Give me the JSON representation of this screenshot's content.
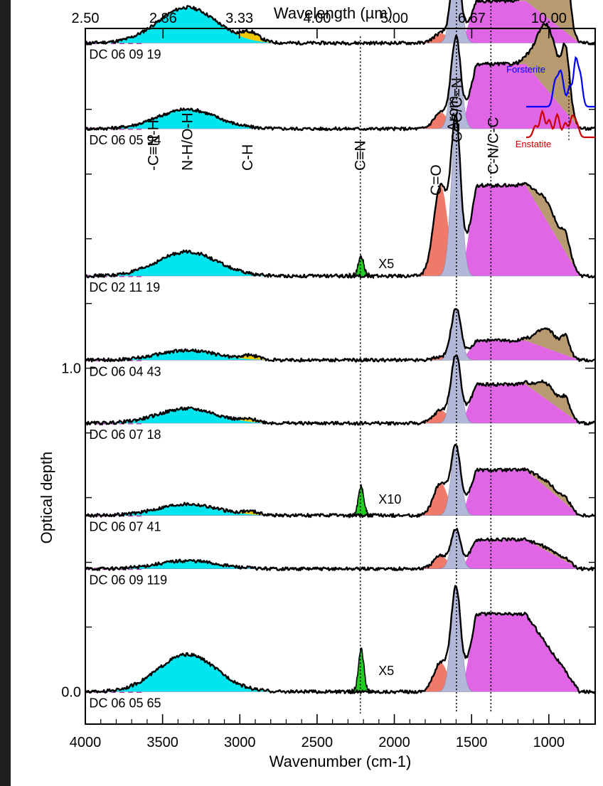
{
  "chart_data": {
    "type": "line",
    "title": "",
    "xlabel": "Wavenumber (cm-1)",
    "x2label": "Wavelength (µm)",
    "ylabel": "Optical depth",
    "xlim": [
      4000,
      700
    ],
    "ylim": [
      -0.1,
      2.05
    ],
    "x_ticks": [
      4000,
      3500,
      3000,
      2500,
      2000,
      1500,
      1000
    ],
    "x2_ticks": [
      {
        "label": "2.50",
        "wavenumber": 4000
      },
      {
        "label": "2.86",
        "wavenumber": 3497
      },
      {
        "label": "3.33",
        "wavenumber": 3003
      },
      {
        "label": "4.00",
        "wavenumber": 2500
      },
      {
        "label": "5.00",
        "wavenumber": 2000
      },
      {
        "label": "6.67",
        "wavenumber": 1499
      },
      {
        "label": "10.00",
        "wavenumber": 1000
      }
    ],
    "y_ticks": [
      {
        "value": 0.0,
        "label": "0.0"
      },
      {
        "value": 1.0,
        "label": "1.0"
      }
    ],
    "band_labels": [
      {
        "text": "-C≡N-H",
        "wavenumber": 3560
      },
      {
        "text": "N-H/O-H",
        "wavenumber": 3340
      },
      {
        "text": "C-H",
        "wavenumber": 2950
      },
      {
        "text": "C≡N",
        "wavenumber": 2220
      },
      {
        "text": "C=O",
        "wavenumber": 1730
      },
      {
        "text": "Arom.",
        "wavenumber": 1620
      },
      {
        "text": "C=C/C=N",
        "wavenumber": 1595
      },
      {
        "text": "C-N/C-C",
        "wavenumber": 1360
      }
    ],
    "dotted_lines": [
      2220,
      1598,
      1375
    ],
    "series": [
      {
        "name": "DC 06 09 19",
        "baseline": 2.005,
        "cn_peak": 0,
        "cn_label": "",
        "nh_peak": 0.11,
        "ch_peak": 0.025,
        "co_peak": 0.03,
        "arom_peak": 0.245,
        "cn_cc_peak": 0.13,
        "silicate_peak": 0.23,
        "label_offset": -0.06
      },
      {
        "name": "DC 06 05 94",
        "baseline": 1.74,
        "cn_peak": 0,
        "cn_label": "",
        "nh_peak": 0.06,
        "ch_peak": 0,
        "co_peak": 0.05,
        "arom_peak": 0.28,
        "cn_cc_peak": 0.2,
        "silicate_peak": 0.2,
        "label_offset": -0.06
      },
      {
        "name": "DC 02 11 19",
        "baseline": 1.285,
        "cn_peak": 0.06,
        "cn_label": "X5",
        "nh_peak": 0.075,
        "ch_peak": 0,
        "co_peak": 0.28,
        "arom_peak": 0.47,
        "cn_cc_peak": 0.28,
        "silicate_peak": 0.06,
        "label_offset": -0.06
      },
      {
        "name": "DC 06 04 43",
        "baseline": 1.025,
        "cn_peak": 0,
        "cn_label": "",
        "nh_peak": 0.03,
        "ch_peak": 0.012,
        "co_peak": 0.01,
        "arom_peak": 0.16,
        "cn_cc_peak": 0.06,
        "silicate_peak": 0.06,
        "label_offset": -0.055
      },
      {
        "name": "DC 06 07 18",
        "baseline": 0.83,
        "cn_peak": 0,
        "cn_label": "",
        "nh_peak": 0.045,
        "ch_peak": 0.008,
        "co_peak": 0.04,
        "arom_peak": 0.21,
        "cn_cc_peak": 0.12,
        "silicate_peak": 0.05,
        "label_offset": -0.055
      },
      {
        "name": "DC 06 07 41",
        "baseline": 0.545,
        "cn_peak": 0.09,
        "cn_label": "X10",
        "nh_peak": 0.035,
        "ch_peak": 0.01,
        "co_peak": 0.1,
        "arom_peak": 0.21,
        "cn_cc_peak": 0.14,
        "silicate_peak": 0.02,
        "label_offset": -0.055
      },
      {
        "name": "DC 06 09 119",
        "baseline": 0.38,
        "cn_peak": 0,
        "cn_label": "",
        "nh_peak": 0.025,
        "ch_peak": 0,
        "co_peak": 0.04,
        "arom_peak": 0.12,
        "cn_cc_peak": 0.09,
        "silicate_peak": 0.01,
        "label_offset": -0.055
      },
      {
        "name": "DC 06 05 65",
        "baseline": 0.0,
        "cn_peak": 0.13,
        "cn_label": "X5",
        "nh_peak": 0.115,
        "ch_peak": 0,
        "co_peak": 0.09,
        "arom_peak": 0.32,
        "cn_cc_peak": 0.24,
        "silicate_peak": 0.0,
        "label_offset": -0.045
      }
    ],
    "inset": {
      "series": [
        {
          "name": "Forsterite",
          "color": "#0000ff"
        },
        {
          "name": "Enstatite",
          "color": "#cc0000"
        }
      ]
    },
    "component_colors": {
      "nh": "#00e5ee",
      "ch": "#f0c800",
      "cn": "#22cc22",
      "co": "#f07a6a",
      "arom": "#b4b8d8",
      "cn_cc": "#e066e6",
      "silicate": "#b89a70",
      "baseline_dash": "#b040b0"
    }
  }
}
